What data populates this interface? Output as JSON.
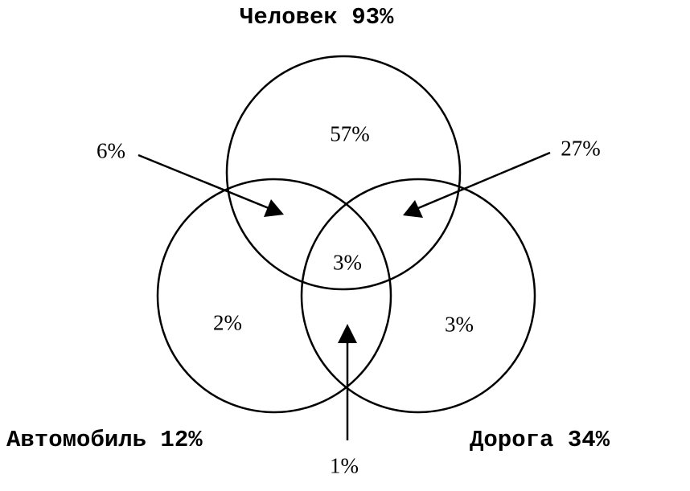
{
  "sets": {
    "human": "Человек 93%",
    "car": "Автомобиль 12%",
    "road": "Дорога 34%"
  },
  "regions": {
    "human_only": "57%",
    "car_only": "2%",
    "road_only": "3%",
    "all_three": "3%",
    "human_car": "6%",
    "human_road": "27%",
    "car_road": "1%"
  },
  "colors": {
    "stroke": "#000000",
    "background": "#ffffff"
  }
}
